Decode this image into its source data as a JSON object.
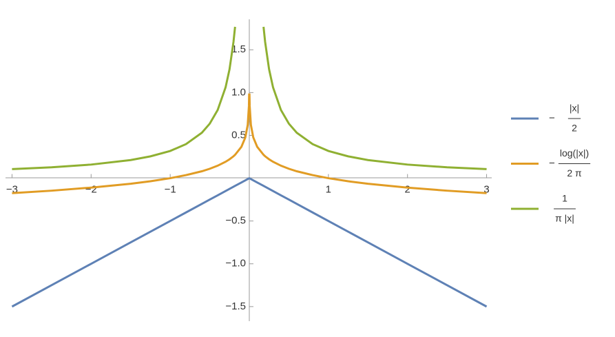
{
  "chart_data": {
    "type": "line",
    "x": [
      -3,
      -2.5,
      -2,
      -1.5,
      -1.25,
      -1,
      -0.8,
      -0.6,
      -0.5,
      -0.4,
      -0.3,
      -0.25,
      -0.2,
      -0.18,
      -0.1,
      -0.05,
      -0.02,
      -0.005,
      -0.002,
      0,
      0.002,
      0.005,
      0.02,
      0.05,
      0.1,
      0.18,
      0.2,
      0.25,
      0.3,
      0.4,
      0.5,
      0.6,
      0.8,
      1,
      1.25,
      1.5,
      2,
      2.5,
      3
    ],
    "series": [
      {
        "name": {
          "sign": "−",
          "numerator": "|x|",
          "denominator": "2"
        },
        "color": "#5e81b5",
        "values": [
          -1.5,
          -1.25,
          -1,
          -0.75,
          -0.625,
          -0.5,
          -0.4,
          -0.3,
          -0.25,
          -0.2,
          -0.15,
          -0.125,
          -0.1,
          -0.09,
          -0.05,
          -0.025,
          -0.01,
          -0.0025,
          -0.001,
          0,
          -0.001,
          -0.0025,
          -0.01,
          -0.025,
          -0.05,
          -0.09,
          -0.1,
          -0.125,
          -0.15,
          -0.2,
          -0.25,
          -0.3,
          -0.4,
          -0.5,
          -0.625,
          -0.75,
          -1,
          -1.25,
          -1.5
        ]
      },
      {
        "name": {
          "sign": "−",
          "numerator": "log(|x|)",
          "denominator": "2 π"
        },
        "color": "#e19c24",
        "values": [
          -0.175,
          -0.146,
          -0.11,
          -0.065,
          -0.036,
          0,
          0.036,
          0.081,
          0.11,
          0.146,
          0.192,
          0.221,
          0.256,
          0.273,
          0.366,
          0.477,
          0.623,
          0.843,
          0.989,
          null,
          0.989,
          0.843,
          0.623,
          0.477,
          0.366,
          0.273,
          0.256,
          0.221,
          0.192,
          0.146,
          0.11,
          0.081,
          0.036,
          0,
          -0.036,
          -0.065,
          -0.11,
          -0.146,
          -0.175
        ]
      },
      {
        "name": {
          "numerator": "1",
          "denominator": "π |x|"
        },
        "color": "#8fb032",
        "values": [
          0.106,
          0.127,
          0.159,
          0.212,
          0.255,
          0.318,
          0.398,
          0.531,
          0.637,
          0.796,
          1.061,
          1.273,
          1.592,
          1.768,
          null,
          null,
          null,
          null,
          null,
          null,
          null,
          null,
          null,
          null,
          null,
          1.768,
          1.592,
          1.273,
          1.061,
          0.796,
          0.637,
          0.531,
          0.398,
          0.318,
          0.255,
          0.212,
          0.159,
          0.127,
          0.106
        ]
      }
    ],
    "xlim": [
      -3.03,
      3.03
    ],
    "ylim": [
      -1.67,
      1.84
    ],
    "xticks": [
      {
        "value": -3,
        "label": "−3"
      },
      {
        "value": -2,
        "label": "−2"
      },
      {
        "value": -1,
        "label": "−1"
      },
      1,
      2,
      3
    ],
    "yticks": [
      {
        "value": -1.5,
        "label": "−1.5"
      },
      {
        "value": -1,
        "label": "−1.0"
      },
      {
        "value": -0.5,
        "label": "−0.5"
      },
      0.5,
      {
        "value": 1,
        "label": "1.0"
      },
      1.5
    ],
    "legend": "right"
  }
}
